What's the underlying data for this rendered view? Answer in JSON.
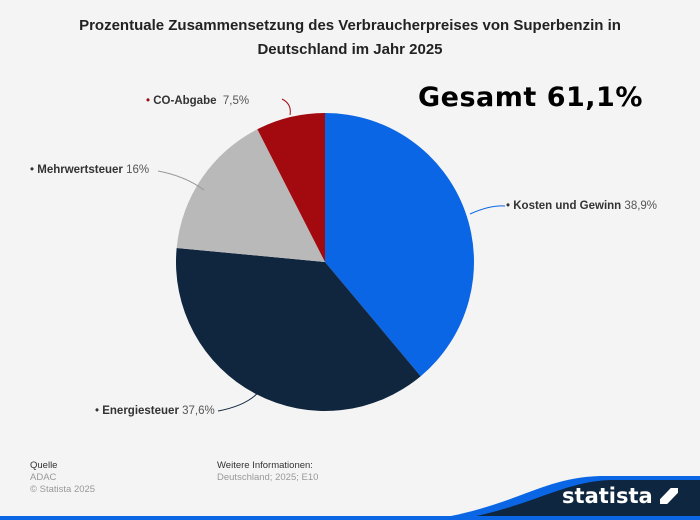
{
  "title_line1": "Prozentuale Zusammensetzung des Verbraucherpreises von Superbenzin in",
  "title_line2": "Deutschland im Jahr 2025",
  "annotation": "Gesamt 61,1%",
  "chart_data": {
    "type": "pie",
    "title": "Prozentuale Zusammensetzung des Verbraucherpreises von Superbenzin in Deutschland im Jahr 2025",
    "start": "top",
    "direction": "clockwise",
    "slices": [
      {
        "name": "Kosten und Gewinn",
        "value": 38.9,
        "label": "38,9%",
        "color": "#0a66e4"
      },
      {
        "name": "Energiesteuer",
        "value": 37.6,
        "label": "37,6%",
        "color": "#10263f"
      },
      {
        "name": "Mehrwertsteuer",
        "value": 16,
        "label": "16%",
        "color": "#b9b9b9"
      },
      {
        "name": "CO-Abgabe",
        "value": 7.5,
        "label": "7,5%",
        "color": "#a30a10"
      }
    ]
  },
  "footer": {
    "source_heading": "Quelle",
    "source": "ADAC",
    "copyright": "© Statista 2025",
    "info_heading": "Weitere Informationen:",
    "info": "Deutschland; 2025; E10",
    "logo": "statista"
  }
}
